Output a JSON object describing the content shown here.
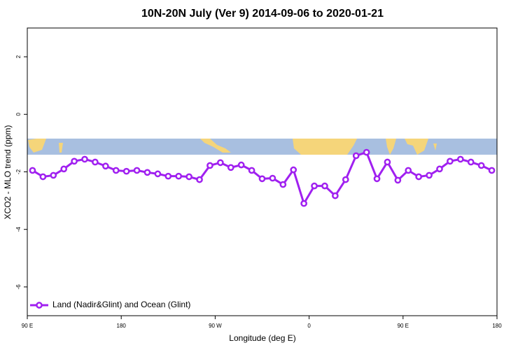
{
  "chart_data": {
    "type": "line",
    "title": "10N-20N July (Ver 9)   2014-09-06 to 2020-01-21",
    "x_label": "Longitude (deg E)",
    "y_label": "XCO2 - MLO trend (ppm)",
    "xlim": [
      90,
      540
    ],
    "ylim": [
      -7,
      3
    ],
    "xticks": [
      {
        "value": 90,
        "label": "90 E"
      },
      180,
      {
        "value": 270,
        "label": "90 W"
      },
      {
        "value": 360,
        "label": "0"
      },
      {
        "value": 450,
        "label": "90 E"
      },
      {
        "value": 540,
        "label": "180"
      }
    ],
    "yticks": [
      -6,
      -4,
      -2,
      0,
      2
    ],
    "legend": "bottom-left",
    "x": [
      95,
      105,
      115,
      125,
      135,
      145,
      155,
      165,
      175,
      185,
      195,
      205,
      215,
      225,
      235,
      245,
      255,
      265,
      275,
      285,
      295,
      305,
      315,
      325,
      335,
      345,
      355,
      365,
      375,
      385,
      395,
      405,
      415,
      425,
      435,
      445,
      455,
      465,
      475,
      485,
      495,
      505,
      515,
      525,
      535
    ],
    "series": [
      {
        "name": "Land (Nadir&Glint) and Ocean (Glint)",
        "color": "#a020f0",
        "values": [
          -1.95,
          -2.17,
          -2.12,
          -1.9,
          -1.63,
          -1.56,
          -1.66,
          -1.8,
          -1.95,
          -1.98,
          -1.95,
          -2.02,
          -2.07,
          -2.15,
          -2.15,
          -2.17,
          -2.27,
          -1.78,
          -1.68,
          -1.85,
          -1.76,
          -1.95,
          -2.24,
          -2.22,
          -2.44,
          -1.93,
          -3.1,
          -2.49,
          -2.49,
          -2.83,
          -2.27,
          -1.44,
          -1.32,
          -2.24,
          -1.66,
          -2.29,
          -1.95,
          -2.17,
          -2.12,
          -1.9,
          -1.63,
          -1.56,
          -1.66,
          -1.78,
          -1.95
        ]
      }
    ]
  }
}
